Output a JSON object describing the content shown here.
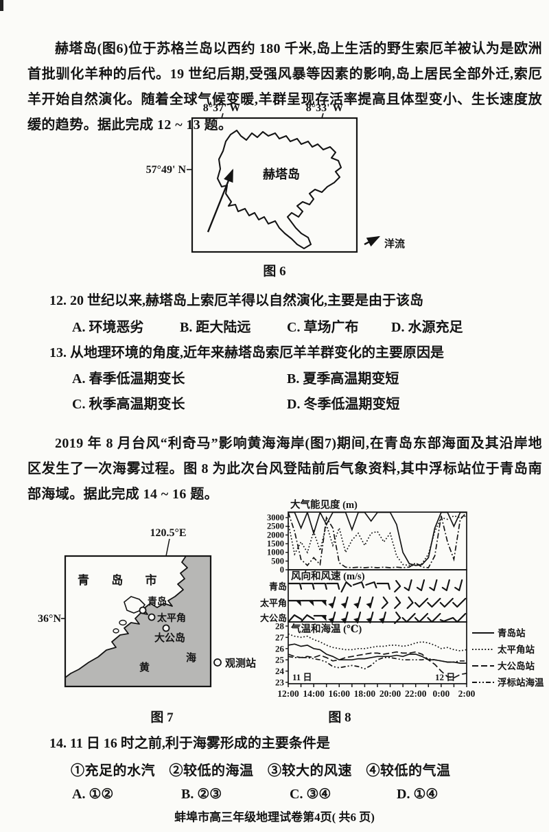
{
  "passages": {
    "p1": "赫塔岛(图6)位于苏格兰岛以西约 180 千米,岛上生活的野生索厄羊被认为是欧洲首批驯化羊种的后代。19 世纪后期,受强风暴等因素的影响,岛上居民全部外迁,索厄羊开始自然演化。随着全球气候变暖,羊群呈现存活率提高且体型变小、生长速度放缓的趋势。据此完成 12 ~ 13 题。",
    "p2": "2019 年 8 月台风“利奇马”影响黄海海岸(图7)期间,在青岛东部海面及其沿岸地区发生了一次海雾过程。图 8 为此次台风登陆前后气象资料,其中浮标站位于青岛南部海域。据此完成 14 ~ 16 题。"
  },
  "figure6": {
    "caption": "图 6",
    "lon_left": "8°37' W",
    "lon_right": "8°33' W",
    "lat": "57°49' N",
    "island": "赫塔岛",
    "legend": "洋流"
  },
  "figure7": {
    "caption": "图 7",
    "lon": "120.5°E",
    "lat": "36°N",
    "city": "青 岛 市",
    "stations": [
      "青岛",
      "太平角",
      "大公岛"
    ],
    "sea_chars": [
      "黄",
      "海"
    ],
    "legend_station": "观测站"
  },
  "figure8": {
    "caption": "图 8"
  },
  "chart_data": [
    {
      "type": "line",
      "title": "大气能见度 (m)",
      "ylabel": "能见度",
      "ylim": [
        0,
        3000
      ],
      "yticks": [
        0,
        500,
        1000,
        1500,
        2000,
        2500,
        3000
      ],
      "x_hours_start": "12:00",
      "x_hours_end": "2:00",
      "series": [
        {
          "name": "青岛站",
          "style": "solid",
          "values": [
            3300,
            3300,
            2400,
            3300,
            2100,
            3300,
            2600,
            3300,
            3300,
            3300,
            2300,
            3300,
            3300,
            2800,
            3300,
            3300,
            3300,
            2600,
            1000,
            350,
            250,
            300,
            700,
            2400,
            3300,
            3300,
            2500,
            3300,
            3300
          ]
        },
        {
          "name": "太平角站",
          "style": "dotted",
          "values": [
            2700,
            900,
            1600,
            1000,
            2200,
            1100,
            2600,
            1400,
            2400,
            1000,
            1700,
            2100,
            1400,
            2100,
            2200,
            1600,
            2100,
            800,
            300,
            250,
            250,
            350,
            900,
            2200,
            3000,
            2900,
            3100,
            3000,
            3100
          ]
        },
        {
          "name": "大公岛站",
          "style": "dashdot",
          "values": [
            3300,
            2200,
            600,
            250,
            700,
            300,
            3000,
            2400,
            400,
            150,
            120,
            150,
            120,
            150,
            120,
            150,
            120,
            150,
            120,
            150,
            400,
            150,
            120,
            800,
            3100,
            1600,
            600,
            2900,
            3300
          ]
        }
      ]
    },
    {
      "type": "wind-barbs",
      "title": "风向和风速 (m/s)",
      "rows": [
        {
          "name": "青岛",
          "glyphs": [
            "L",
            "L",
            "L",
            "L",
            "bend",
            "hook",
            "hook",
            "L",
            "vee",
            "J",
            "J",
            "J",
            "J",
            "J"
          ]
        },
        {
          "name": "太平角",
          "glyphs": [
            "flagL",
            "flagL",
            "flagL",
            "flagV",
            "flagV",
            "flagV",
            "flagV",
            "vee",
            "vee",
            "vee",
            "check",
            "check",
            "check",
            "check"
          ]
        },
        {
          "name": "大公岛",
          "glyphs": [
            "swoosh",
            "swoosh",
            "flagL",
            "flagV",
            "flagV",
            "flagV",
            "flagV",
            "flagV",
            "vee",
            "check",
            "check",
            "check",
            "flat",
            "check"
          ]
        }
      ]
    },
    {
      "type": "line",
      "title": "气温和海温 (℃)",
      "ylim": [
        23,
        28
      ],
      "yticks": [
        23,
        24,
        25,
        26,
        27,
        28
      ],
      "xticklabels": [
        "12:00",
        "14:00",
        "16:00",
        "18:00",
        "20:00",
        "22:00",
        "0:00",
        "2:00"
      ],
      "date_left": "11 日",
      "date_right": "12 日",
      "legend": [
        {
          "label": "青岛站",
          "style": "solid"
        },
        {
          "label": "太平角站",
          "style": "dotted"
        },
        {
          "label": "大公岛站",
          "style": "dash"
        },
        {
          "label": "浮标站海温",
          "style": "dashdotdot"
        }
      ],
      "series": [
        {
          "name": "青岛站",
          "style": "solid",
          "values": [
            26.3,
            26.4,
            26.2,
            26.3,
            26.0,
            25.9,
            25.5,
            25.3,
            25.0,
            25.0,
            25.0,
            25.1,
            25.1,
            25.2,
            25.3,
            25.3,
            25.3,
            25.4,
            25.3,
            25.5,
            25.5,
            25.3,
            25.0,
            25.0,
            24.9,
            24.8,
            24.8,
            24.7,
            24.7
          ]
        },
        {
          "name": "太平角站",
          "style": "dotted",
          "values": [
            27.3,
            27.1,
            27.0,
            27.1,
            26.8,
            26.6,
            26.3,
            26.1,
            26.0,
            25.9,
            25.9,
            26.0,
            26.0,
            26.1,
            26.2,
            26.2,
            26.3,
            26.3,
            26.2,
            26.3,
            26.5,
            26.6,
            26.5,
            26.3,
            26.0,
            26.1,
            25.9,
            25.8,
            25.9
          ]
        },
        {
          "name": "大公岛站",
          "style": "dash",
          "values": [
            25.5,
            25.3,
            25.2,
            25.3,
            25.2,
            25.4,
            25.2,
            24.9,
            25.0,
            25.2,
            25.3,
            25.4,
            25.5,
            25.6,
            25.6,
            25.5,
            25.6,
            25.7,
            25.6,
            25.6,
            25.7,
            25.5,
            25.0,
            24.6,
            24.0,
            23.5,
            23.4,
            23.7,
            23.8
          ]
        },
        {
          "name": "浮标站海温",
          "style": "dashdotdot",
          "values": [
            25.3,
            25.2,
            25.2,
            25.2,
            25.1,
            25.0,
            24.8,
            24.4,
            24.3,
            24.4,
            24.5,
            24.4,
            24.2,
            24.5,
            25.0,
            25.2,
            25.2,
            25.1,
            25.0,
            25.0,
            25.0,
            25.0,
            25.1,
            25.0,
            24.9,
            24.8,
            24.8,
            24.9,
            24.9
          ]
        }
      ]
    }
  ],
  "questions": {
    "q12": {
      "stem": "12. 20 世纪以来,赫塔岛上索厄羊得以自然演化,主要是由于该岛",
      "options": [
        "A. 环境恶劣",
        "B. 距大陆远",
        "C. 草场广布",
        "D. 水源充足"
      ]
    },
    "q13": {
      "stem": "13. 从地理环境的角度,近年来赫塔岛索厄羊羊群变化的主要原因是",
      "options": [
        "A. 春季低温期变长",
        "B. 夏季高温期变短",
        "C. 秋季高温期变长",
        "D. 冬季低温期变短"
      ]
    },
    "q14": {
      "stem": "14. 11 日 16 时之前,利于海雾形成的主要条件是",
      "items": "①充足的水汽　②较低的海温　③较大的风速　④较低的气温",
      "options": [
        "A. ①②",
        "B. ②③",
        "C. ③④",
        "D. ①④"
      ]
    }
  },
  "footer": "蚌埠市高三年级地理试卷第4页( 共6 页)"
}
